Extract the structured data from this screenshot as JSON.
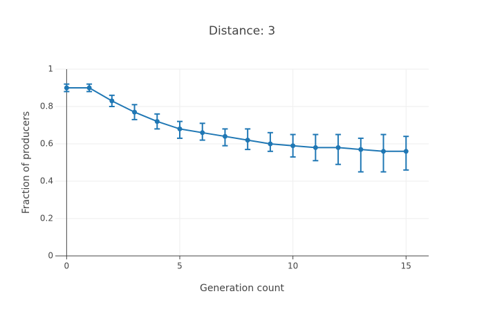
{
  "chart_data": {
    "type": "line",
    "title": "Distance: 3",
    "xlabel": "Generation count",
    "ylabel": "Fraction of producers",
    "xlim": [
      -0.5,
      16
    ],
    "ylim": [
      0,
      1
    ],
    "x_ticks": [
      0,
      5,
      10,
      15
    ],
    "y_ticks": [
      0,
      0.2,
      0.4,
      0.6,
      0.8,
      1
    ],
    "x_tick_labels": [
      "0",
      "5",
      "10",
      "15"
    ],
    "y_tick_labels": [
      "0",
      "0.2",
      "0.4",
      "0.6",
      "0.8",
      "1"
    ],
    "grid": true,
    "legend": "none",
    "series": [
      {
        "x": [
          0,
          1,
          2,
          3,
          4,
          5,
          6,
          7,
          8,
          9,
          10,
          11,
          12,
          13,
          14,
          15
        ],
        "y": [
          0.9,
          0.9,
          0.83,
          0.77,
          0.72,
          0.68,
          0.66,
          0.64,
          0.62,
          0.6,
          0.59,
          0.58,
          0.58,
          0.57,
          0.56,
          0.56
        ],
        "error_upper": [
          0.92,
          0.92,
          0.86,
          0.81,
          0.76,
          0.72,
          0.71,
          0.68,
          0.68,
          0.66,
          0.65,
          0.65,
          0.65,
          0.63,
          0.65,
          0.64
        ],
        "error_lower": [
          0.88,
          0.88,
          0.8,
          0.73,
          0.68,
          0.63,
          0.62,
          0.59,
          0.57,
          0.56,
          0.53,
          0.51,
          0.49,
          0.45,
          0.45,
          0.46
        ],
        "color": "#1f77b4"
      }
    ]
  }
}
